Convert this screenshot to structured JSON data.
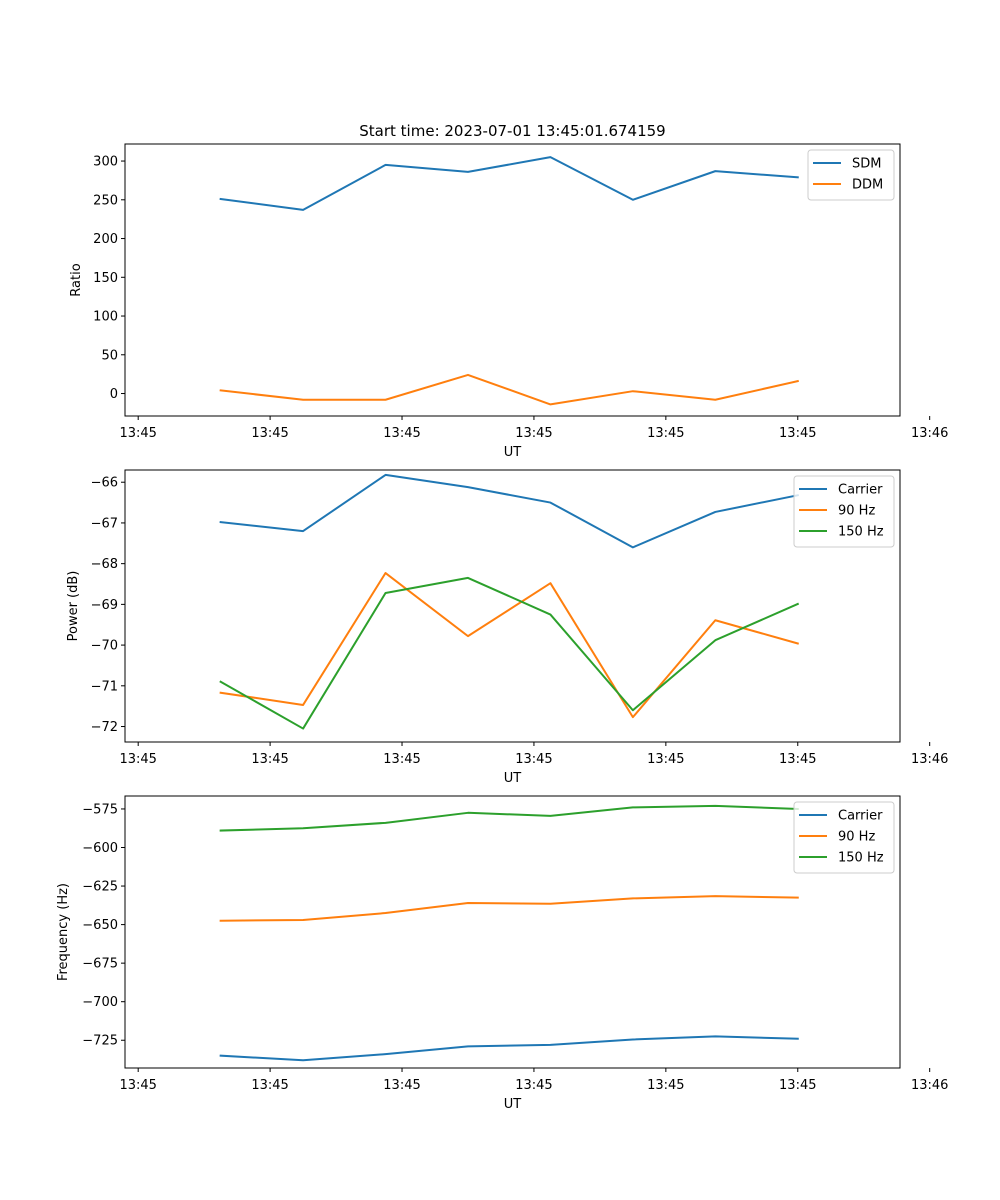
{
  "figure": {
    "title": "Start time: 2023-07-01 13:45:01.674159"
  },
  "colors": {
    "blue": "#1f77b4",
    "orange": "#ff7f0e",
    "green": "#2ca02c"
  },
  "chart_data": [
    {
      "type": "line",
      "title": "Start time: 2023-07-01 13:45:01.674159",
      "xlabel": "UT",
      "ylabel": "Ratio",
      "x": [
        0.5,
        1.0,
        1.5,
        2.0,
        2.5,
        3.0,
        3.5,
        4.0
      ],
      "xlim": [
        -0.08,
        4.62
      ],
      "xticks": [
        0,
        0.8,
        1.6,
        2.4,
        3.2,
        4.0,
        4.8
      ],
      "xticklabels": [
        "13:45",
        "13:45",
        "13:45",
        "13:45",
        "13:45",
        "13:45",
        "13:46"
      ],
      "ylim": [
        -29,
        322
      ],
      "yticks": [
        0,
        50,
        100,
        150,
        200,
        250,
        300
      ],
      "yticklabels": [
        "0",
        "50",
        "100",
        "150",
        "200",
        "250",
        "300"
      ],
      "legend": "top-right",
      "series": [
        {
          "name": "SDM",
          "color": "#1f77b4",
          "values": [
            251,
            237,
            295,
            286,
            305,
            250,
            287,
            279
          ]
        },
        {
          "name": "DDM",
          "color": "#ff7f0e",
          "values": [
            4,
            -8,
            -8,
            24,
            -14,
            3,
            -8,
            16
          ]
        }
      ]
    },
    {
      "type": "line",
      "title": "",
      "xlabel": "UT",
      "ylabel": "Power (dB)",
      "x": [
        0.5,
        1.0,
        1.5,
        2.0,
        2.5,
        3.0,
        3.5,
        4.0
      ],
      "xlim": [
        -0.08,
        4.62
      ],
      "xticks": [
        0,
        0.8,
        1.6,
        2.4,
        3.2,
        4.0,
        4.8
      ],
      "xticklabels": [
        "13:45",
        "13:45",
        "13:45",
        "13:45",
        "13:45",
        "13:45",
        "13:46"
      ],
      "ylim": [
        -72.38,
        -65.7
      ],
      "yticks": [
        -72,
        -71,
        -70,
        -69,
        -68,
        -67,
        -66
      ],
      "yticklabels": [
        "−72",
        "−71",
        "−70",
        "−69",
        "−68",
        "−67",
        "−66"
      ],
      "legend": "top-right",
      "series": [
        {
          "name": "Carrier",
          "color": "#1f77b4",
          "values": [
            -66.98,
            -67.2,
            -65.82,
            -66.12,
            -66.5,
            -67.6,
            -66.73,
            -66.32
          ]
        },
        {
          "name": "90 Hz",
          "color": "#ff7f0e",
          "values": [
            -71.17,
            -71.47,
            -68.23,
            -69.78,
            -68.48,
            -71.77,
            -69.39,
            -69.96
          ]
        },
        {
          "name": "150 Hz",
          "color": "#2ca02c",
          "values": [
            -70.9,
            -72.05,
            -68.72,
            -68.35,
            -69.25,
            -71.6,
            -69.88,
            -68.99
          ]
        }
      ]
    },
    {
      "type": "line",
      "title": "",
      "xlabel": "UT",
      "ylabel": "Frequency (Hz)",
      "x": [
        0.5,
        1.0,
        1.5,
        2.0,
        2.5,
        3.0,
        3.5,
        4.0
      ],
      "xlim": [
        -0.08,
        4.62
      ],
      "xticks": [
        0,
        0.8,
        1.6,
        2.4,
        3.2,
        4.0,
        4.8
      ],
      "xticklabels": [
        "13:45",
        "13:45",
        "13:45",
        "13:45",
        "13:45",
        "13:45",
        "13:46"
      ],
      "ylim": [
        -743,
        -566.6
      ],
      "yticks": [
        -725,
        -700,
        -675,
        -650,
        -625,
        -600,
        -575
      ],
      "yticklabels": [
        "−725",
        "−700",
        "−675",
        "−650",
        "−625",
        "−600",
        "−575"
      ],
      "legend": "top-right",
      "series": [
        {
          "name": "Carrier",
          "color": "#1f77b4",
          "values": [
            -735,
            -738,
            -734,
            -729,
            -728,
            -724.5,
            -722.5,
            -724
          ]
        },
        {
          "name": "90 Hz",
          "color": "#ff7f0e",
          "values": [
            -647.5,
            -647,
            -642.5,
            -636,
            -636.5,
            -633,
            -631.5,
            -632.5
          ]
        },
        {
          "name": "150 Hz",
          "color": "#2ca02c",
          "values": [
            -589,
            -587.5,
            -584,
            -577.5,
            -579.5,
            -574,
            -573,
            -575
          ]
        }
      ]
    }
  ]
}
